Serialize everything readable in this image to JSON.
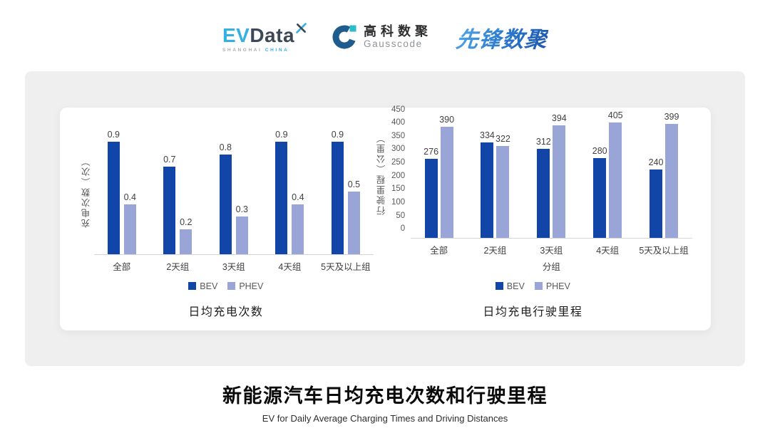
{
  "header": {
    "evdata": {
      "ev": "EV",
      "data": "Data",
      "sub_left": "SHANGHAI",
      "sub_right": "CHINA"
    },
    "gausscode": {
      "cn": "高科数聚",
      "en": "Gausscode"
    },
    "xianfeng": {
      "text": "先锋数聚"
    }
  },
  "colors": {
    "bev": "#1245a8",
    "phev": "#99a4d7",
    "axis_text": "#595959",
    "value_label": "#404040",
    "axis_line": "#d6d6d6",
    "panel_bg": "#efeff0",
    "card_bg": "#ffffff",
    "evdata_blue": "#35b0e5",
    "evdata_dark": "#3d4856",
    "gausscode_blue": "#1d5c8c",
    "gausscode_teal": "#2cbcc9",
    "xianfeng_blue": "#2b78cc"
  },
  "chart_data": [
    {
      "type": "bar",
      "title": "日均充电次数",
      "ylabel": "充电次数（次）",
      "xlabel": "",
      "categories": [
        "全部",
        "2天组",
        "3天组",
        "4天组",
        "5天及以上组"
      ],
      "series": [
        {
          "name": "BEV",
          "color": "#1245a8",
          "values": [
            0.9,
            0.7,
            0.8,
            0.9,
            0.9
          ]
        },
        {
          "name": "PHEV",
          "color": "#99a4d7",
          "values": [
            0.4,
            0.2,
            0.3,
            0.4,
            0.5
          ]
        }
      ],
      "ylim": [
        0,
        1.0
      ],
      "yticks": null,
      "grid": false,
      "legend_position": "bottom"
    },
    {
      "type": "bar",
      "title": "日均充电行驶里程",
      "ylabel": "行驶里程（公里）",
      "xlabel": "分组",
      "categories": [
        "全部",
        "2天组",
        "3天组",
        "4天组",
        "5天及以上组"
      ],
      "series": [
        {
          "name": "BEV",
          "color": "#1245a8",
          "values": [
            276,
            334,
            312,
            280,
            240
          ]
        },
        {
          "name": "PHEV",
          "color": "#99a4d7",
          "values": [
            390,
            322,
            394,
            405,
            399
          ]
        }
      ],
      "ylim": [
        0,
        450
      ],
      "yticks": [
        450,
        400,
        350,
        300,
        250,
        200,
        150,
        100,
        50,
        0
      ],
      "grid": false,
      "legend_position": "bottom"
    }
  ],
  "footer": {
    "title": "新能源汽车日均充电次数和行驶里程",
    "subtitle": "EV for Daily Average Charging Times and Driving Distances"
  }
}
